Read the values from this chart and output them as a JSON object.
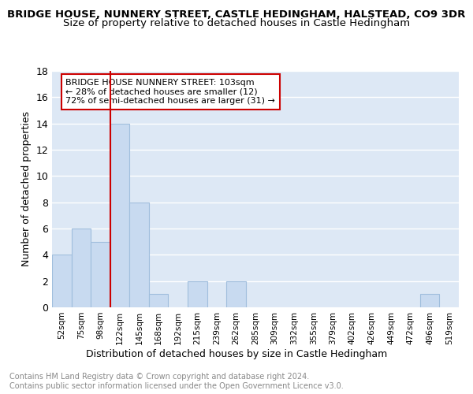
{
  "title": "BRIDGE HOUSE, NUNNERY STREET, CASTLE HEDINGHAM, HALSTEAD, CO9 3DR",
  "subtitle": "Size of property relative to detached houses in Castle Hedingham",
  "xlabel": "Distribution of detached houses by size in Castle Hedingham",
  "ylabel": "Number of detached properties",
  "bar_labels": [
    "52sqm",
    "75sqm",
    "98sqm",
    "122sqm",
    "145sqm",
    "168sqm",
    "192sqm",
    "215sqm",
    "239sqm",
    "262sqm",
    "285sqm",
    "309sqm",
    "332sqm",
    "355sqm",
    "379sqm",
    "402sqm",
    "426sqm",
    "449sqm",
    "472sqm",
    "496sqm",
    "519sqm"
  ],
  "bar_values": [
    4,
    6,
    5,
    14,
    8,
    1,
    0,
    2,
    0,
    2,
    0,
    0,
    0,
    0,
    0,
    0,
    0,
    0,
    0,
    1,
    0
  ],
  "bar_color": "#c8daf0",
  "bar_edge_color": "#a0bedd",
  "background_color": "#dde8f5",
  "grid_color": "#ffffff",
  "ylim": [
    0,
    18
  ],
  "yticks": [
    0,
    2,
    4,
    6,
    8,
    10,
    12,
    14,
    16,
    18
  ],
  "red_line_x": 2.5,
  "annotation_text": "BRIDGE HOUSE NUNNERY STREET: 103sqm\n← 28% of detached houses are smaller (12)\n72% of semi-detached houses are larger (31) →",
  "annotation_box_color": "#ffffff",
  "annotation_box_edge": "#cc0000",
  "footer_line1": "Contains HM Land Registry data © Crown copyright and database right 2024.",
  "footer_line2": "Contains public sector information licensed under the Open Government Licence v3.0.",
  "title_fontsize": 9.5,
  "subtitle_fontsize": 9.5,
  "xlabel_fontsize": 9,
  "ylabel_fontsize": 9,
  "annotation_fontsize": 8,
  "footer_fontsize": 7,
  "tick_fontsize": 7.5
}
